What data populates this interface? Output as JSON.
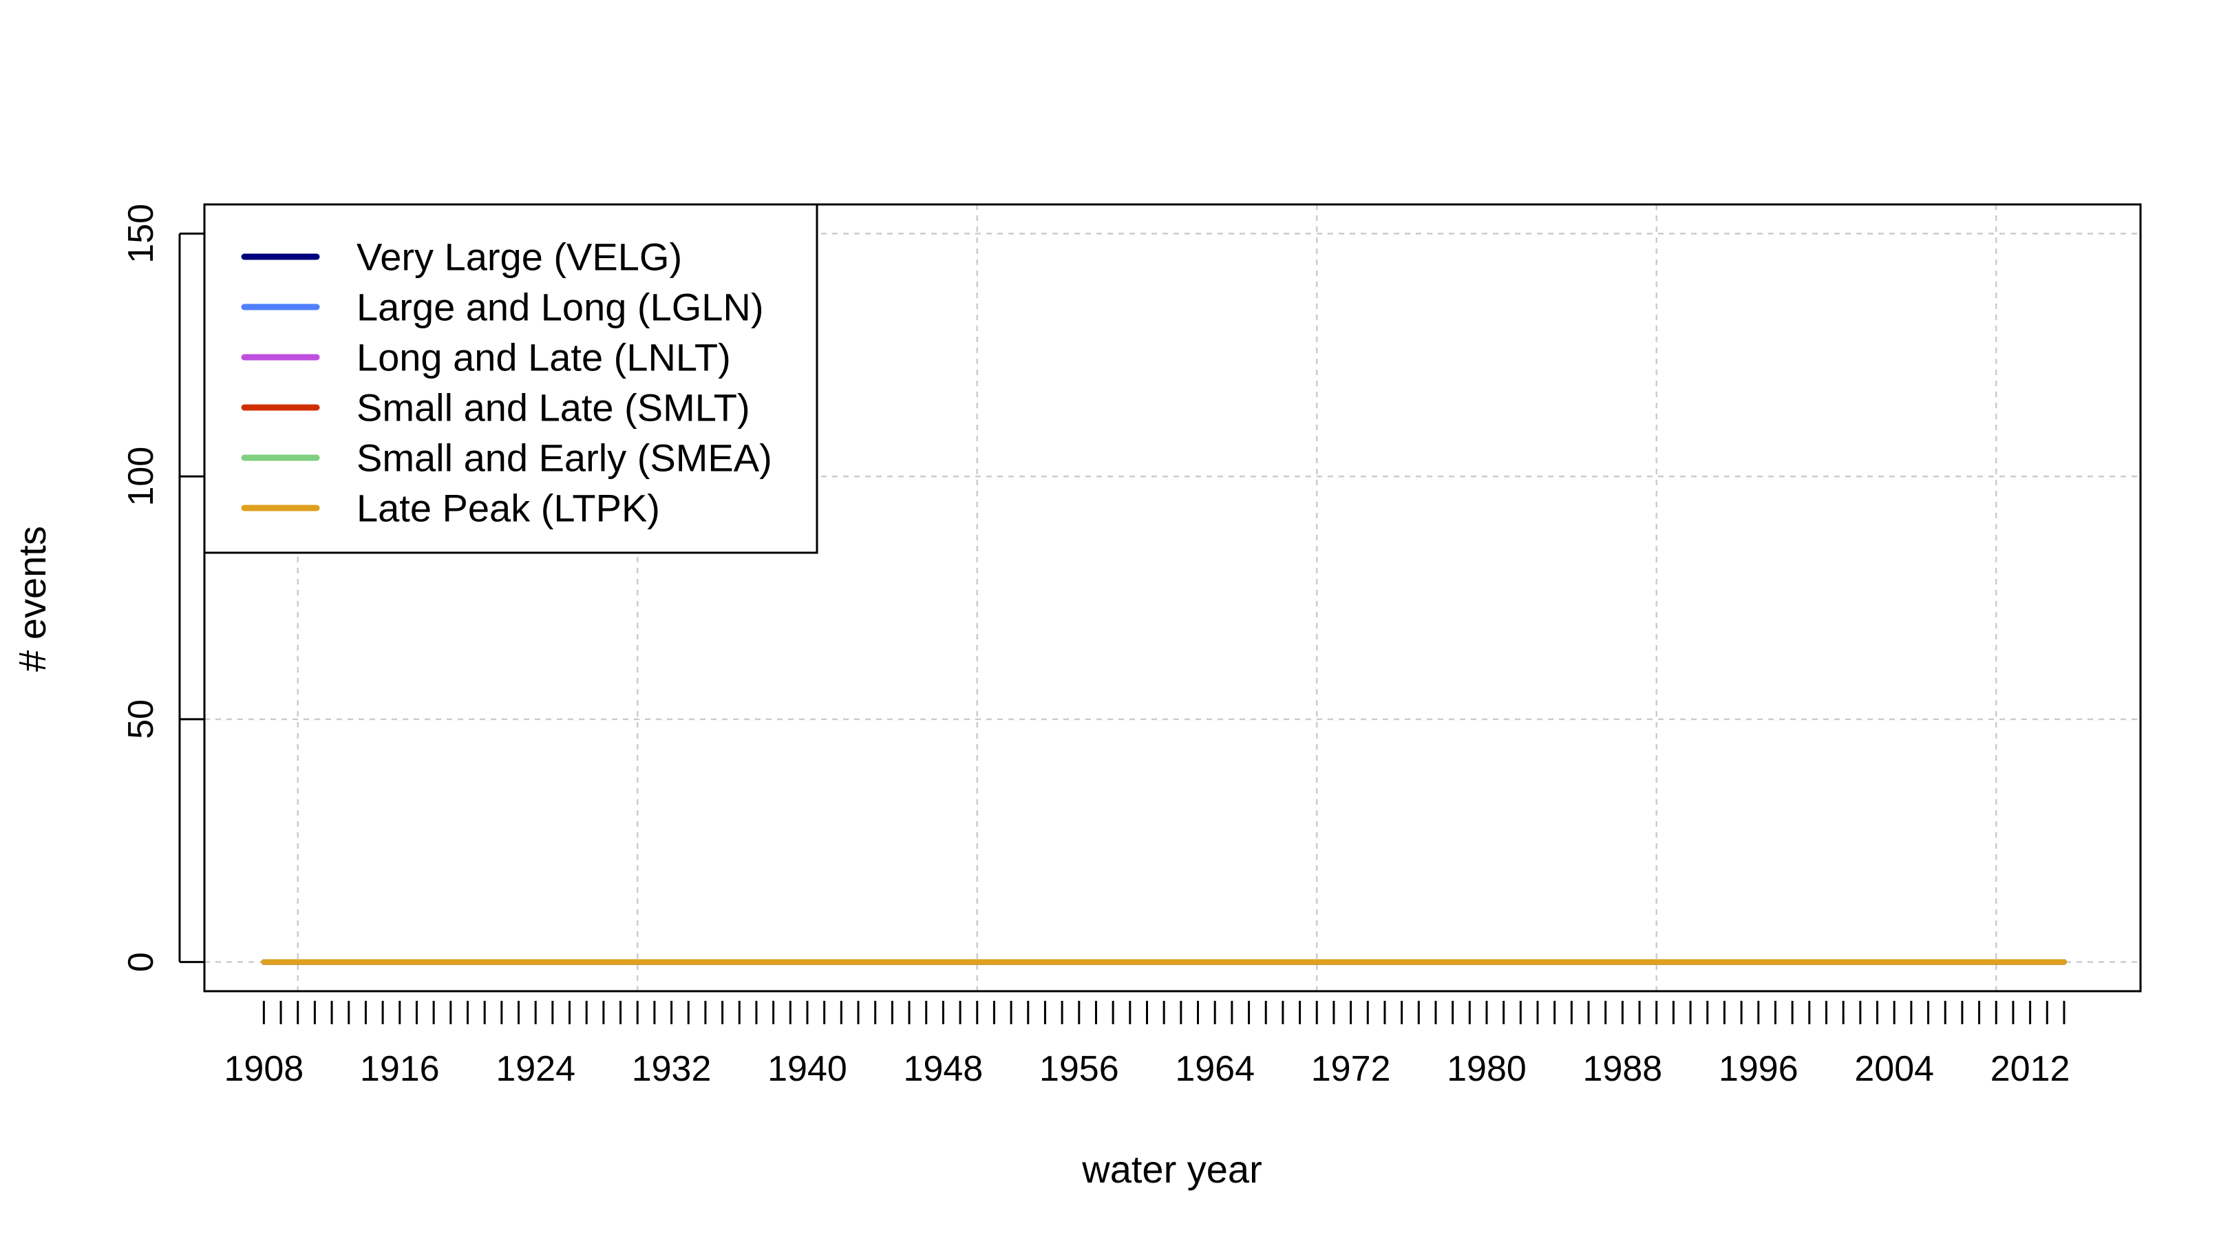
{
  "chart_data": {
    "type": "line",
    "title": "",
    "xlabel": "water year",
    "ylabel": "# events",
    "xlim": [
      1904.5,
      2018.5
    ],
    "ylim": [
      -6,
      156
    ],
    "x_tick_labels": [
      "1908",
      "1916",
      "1924",
      "1932",
      "1940",
      "1948",
      "1956",
      "1964",
      "1972",
      "1980",
      "1988",
      "1996",
      "2004",
      "2012"
    ],
    "y_tick_labels": [
      "0",
      "50",
      "100",
      "150"
    ],
    "x_first": 1908,
    "x_last": 2014,
    "grid": true,
    "legend_position": "top-left",
    "series": [
      {
        "name": "Very Large (VELG)",
        "color": "#00007f",
        "constant_value": 0
      },
      {
        "name": "Large and Long (LGLN)",
        "color": "#4f7fff",
        "constant_value": 0
      },
      {
        "name": "Long and Late (LNLT)",
        "color": "#bf4fdf",
        "constant_value": 0
      },
      {
        "name": "Small and Late (SMLT)",
        "color": "#cf2f00",
        "constant_value": 0
      },
      {
        "name": "Small and Early (SMEA)",
        "color": "#7fcf7f",
        "constant_value": 0
      },
      {
        "name": "Late Peak (LTPK)",
        "color": "#dfa01f",
        "constant_value": 0
      }
    ]
  }
}
